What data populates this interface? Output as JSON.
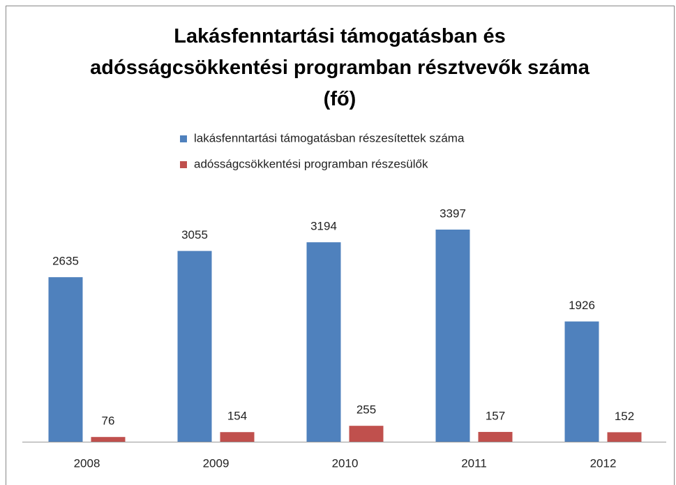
{
  "chart_data": {
    "type": "bar",
    "title": "Lakásfenntartási támogatásban és adósságcsökkentési programban résztvevők száma (fő)",
    "categories": [
      "2008",
      "2009",
      "2010",
      "2011",
      "2012"
    ],
    "series": [
      {
        "name": "lakásfenntartási támogatásban részesítettek száma",
        "color": "#4f81bd",
        "values": [
          2635,
          3055,
          3194,
          3397,
          1926
        ]
      },
      {
        "name": "adósságcsökkentési programban részesülők",
        "color": "#c0504d",
        "values": [
          76,
          154,
          255,
          157,
          152
        ]
      }
    ]
  }
}
